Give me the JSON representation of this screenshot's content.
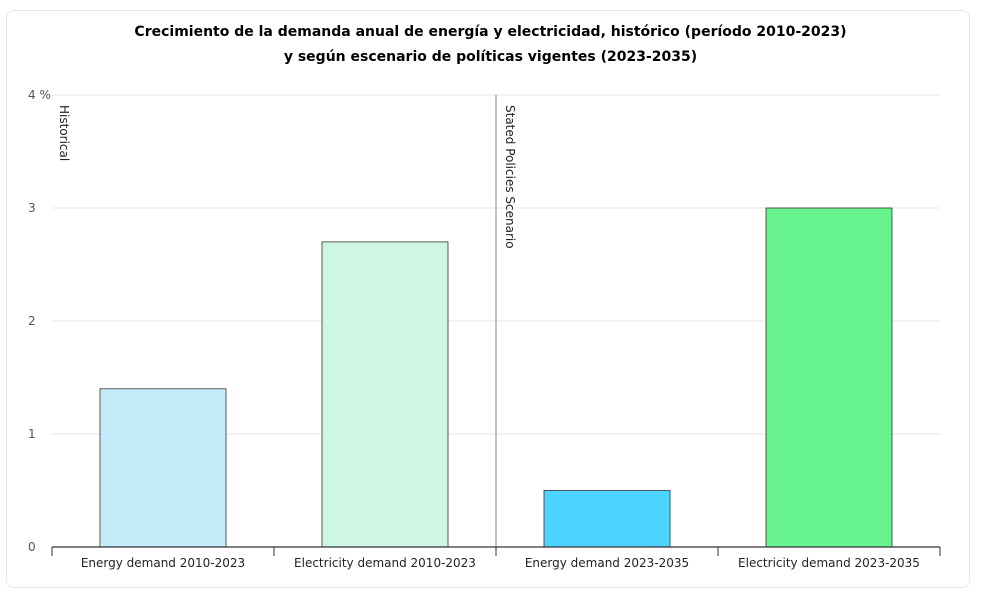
{
  "chart_data": {
    "type": "bar",
    "title": "Crecimiento de la demanda anual de energía y electricidad, histórico (período 2010-2023)",
    "subtitle": "y según escenario de políticas vigentes (2023-2035)",
    "categories": [
      "Energy demand 2010-2023",
      "Electricity demand 2010-2023",
      "Energy demand 2023-2035",
      "Electricity demand 2023-2035"
    ],
    "values": [
      1.4,
      2.7,
      0.5,
      3.0
    ],
    "colors": [
      "#c5ecfa",
      "#cdf7e2",
      "#4ad4ff",
      "#66f28c"
    ],
    "segments": [
      "Historical",
      "Stated Policies Scenario"
    ],
    "y_ticks": [
      "0",
      "1",
      "2",
      "3",
      "4 %"
    ],
    "ylim": [
      0,
      4
    ],
    "grid": true,
    "legend": "none"
  }
}
